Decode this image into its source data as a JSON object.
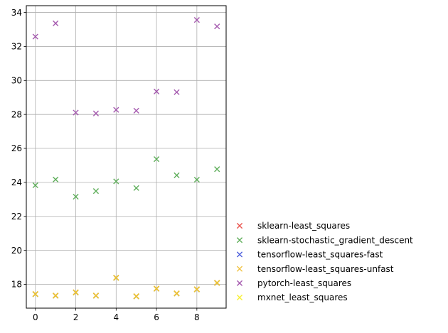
{
  "chart_data": {
    "type": "scatter",
    "title": "",
    "xlabel": "",
    "ylabel": "",
    "xlim": [
      -0.45,
      9.45
    ],
    "ylim": [
      16.6,
      34.4
    ],
    "xticks": [
      "0",
      "2",
      "4",
      "6",
      "8"
    ],
    "yticks": [
      "18",
      "20",
      "22",
      "24",
      "26",
      "28",
      "30",
      "32",
      "34"
    ],
    "grid": true,
    "legend_position": "lower-right, outside plot",
    "marker": "x",
    "x": [
      0,
      1,
      2,
      3,
      4,
      5,
      6,
      7,
      8,
      9
    ],
    "series": [
      {
        "name": "sklearn-least_squares",
        "color": "#e8413b",
        "values": [
          17.42,
          17.33,
          17.52,
          17.33,
          18.38,
          17.29,
          17.74,
          17.46,
          17.7,
          18.08
        ]
      },
      {
        "name": "sklearn-stochastic_gradient_descent",
        "color": "#4fa64a",
        "values": [
          23.83,
          24.17,
          23.16,
          23.49,
          24.06,
          23.67,
          25.37,
          24.42,
          24.16,
          24.78
        ]
      },
      {
        "name": "tensorflow-least_squares-fast",
        "color": "#3b4fd9",
        "values": [
          17.42,
          17.33,
          17.52,
          17.33,
          18.38,
          17.29,
          17.74,
          17.46,
          17.7,
          18.08
        ]
      },
      {
        "name": "tensorflow-least_squares-unfast",
        "color": "#f0be32",
        "values": [
          17.44,
          17.35,
          17.54,
          17.35,
          18.4,
          17.31,
          17.76,
          17.48,
          17.72,
          18.1
        ]
      },
      {
        "name": "pytorch-least_squares",
        "color": "#9b48a6",
        "values": [
          32.58,
          33.36,
          28.11,
          28.06,
          28.27,
          28.22,
          29.35,
          29.31,
          33.56,
          33.18
        ]
      },
      {
        "name": "mxnet_least_squares",
        "color": "#f7f021",
        "values": [
          17.42,
          17.33,
          17.52,
          17.33,
          18.38,
          17.29,
          17.74,
          17.46,
          17.7,
          18.08
        ]
      }
    ],
    "plot_order": [
      0,
      1,
      2,
      5,
      3,
      4
    ]
  }
}
